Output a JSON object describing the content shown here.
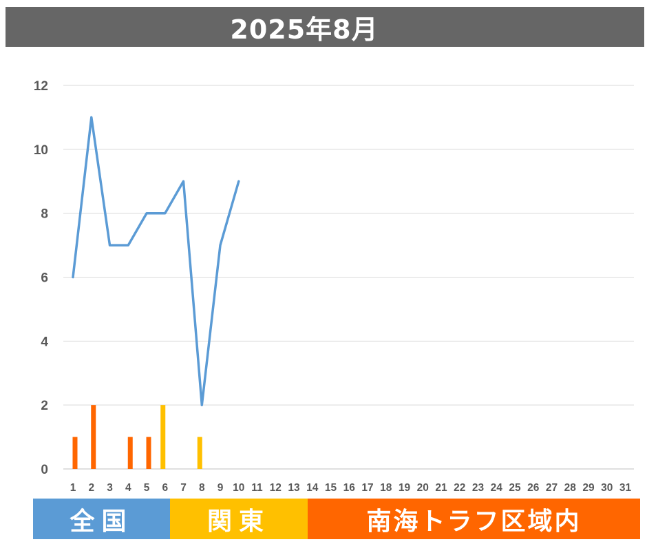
{
  "title": "2025年8月",
  "chart_data": {
    "type": "bar+line",
    "x": [
      "1",
      "2",
      "3",
      "4",
      "5",
      "6",
      "7",
      "8",
      "9",
      "10",
      "11",
      "12",
      "13",
      "14",
      "15",
      "16",
      "17",
      "18",
      "19",
      "20",
      "21",
      "22",
      "23",
      "24",
      "25",
      "26",
      "27",
      "28",
      "29",
      "30",
      "31"
    ],
    "ylim": [
      0,
      12
    ],
    "yticks": [
      "0",
      "2",
      "4",
      "6",
      "8",
      "10",
      "12"
    ],
    "grid": true,
    "line_series": {
      "values": [
        6,
        11,
        7,
        7,
        8,
        8,
        9,
        2,
        7,
        9,
        null,
        null,
        null,
        null,
        null,
        null,
        null,
        null,
        null,
        null,
        null,
        null,
        null,
        null,
        null,
        null,
        null,
        null,
        null,
        null,
        null
      ],
      "color": "#5B9BD5"
    },
    "bar_series": [
      {
        "region": "全国",
        "color": "#FF6600",
        "values": [
          1,
          2,
          0,
          1,
          1,
          0,
          0,
          0,
          0,
          0,
          0,
          0,
          0,
          0,
          0,
          0,
          0,
          0,
          0,
          0,
          0,
          0,
          0,
          0,
          0,
          0,
          0,
          0,
          0,
          0,
          0
        ]
      },
      {
        "region": "関東",
        "color": "#FFC000",
        "values": [
          0,
          0,
          0,
          0,
          0,
          2,
          0,
          1,
          0,
          0,
          0,
          0,
          0,
          0,
          0,
          0,
          0,
          0,
          0,
          0,
          0,
          0,
          0,
          0,
          0,
          0,
          0,
          0,
          0,
          0,
          0
        ]
      }
    ]
  },
  "legend": [
    {
      "label": "全国",
      "color": "#5B9BD5"
    },
    {
      "label": "関東",
      "color": "#FFC000"
    },
    {
      "label": "南海トラフ区域内",
      "color": "#FF6600"
    }
  ]
}
